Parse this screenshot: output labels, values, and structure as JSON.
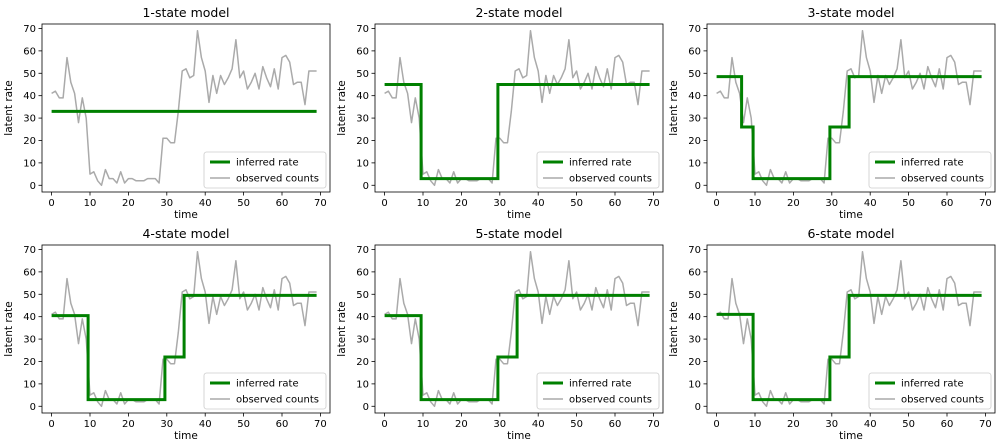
{
  "chart_data": [
    {
      "type": "line",
      "title": "1-state model",
      "xlabel": "time",
      "ylabel": "latent rate",
      "xlim": [
        -2.5,
        72.5
      ],
      "ylim": [
        -3,
        72
      ],
      "xticks": [
        0,
        10,
        20,
        30,
        40,
        50,
        60,
        70
      ],
      "yticks": [
        0,
        10,
        20,
        30,
        40,
        50,
        60,
        70
      ],
      "legend_placement": "lower right",
      "series": [
        {
          "name": "inferred rate",
          "color": "#008000",
          "segments": [
            {
              "x0": 0,
              "x1": 69,
              "value": 33
            }
          ]
        },
        {
          "name": "observed counts",
          "color": "#aaaaaa",
          "ref": "observed_counts"
        }
      ]
    },
    {
      "type": "line",
      "title": "2-state model",
      "xlabel": "time",
      "ylabel": "latent rate",
      "xlim": [
        -2.5,
        72.5
      ],
      "ylim": [
        -3,
        72
      ],
      "xticks": [
        0,
        10,
        20,
        30,
        40,
        50,
        60,
        70
      ],
      "yticks": [
        0,
        10,
        20,
        30,
        40,
        50,
        60,
        70
      ],
      "legend_placement": "lower right",
      "series": [
        {
          "name": "inferred rate",
          "color": "#008000",
          "segments": [
            {
              "x0": 0,
              "x1": 9.5,
              "value": 45
            },
            {
              "x0": 9.5,
              "x1": 29.5,
              "value": 3
            },
            {
              "x0": 29.5,
              "x1": 69,
              "value": 45
            }
          ]
        },
        {
          "name": "observed counts",
          "color": "#aaaaaa",
          "ref": "observed_counts"
        }
      ]
    },
    {
      "type": "line",
      "title": "3-state model",
      "xlabel": "time",
      "ylabel": "latent rate",
      "xlim": [
        -2.5,
        72.5
      ],
      "ylim": [
        -3,
        72
      ],
      "xticks": [
        0,
        10,
        20,
        30,
        40,
        50,
        60,
        70
      ],
      "yticks": [
        0,
        10,
        20,
        30,
        40,
        50,
        60,
        70
      ],
      "legend_placement": "lower right",
      "series": [
        {
          "name": "inferred rate",
          "color": "#008000",
          "segments": [
            {
              "x0": 0,
              "x1": 6.5,
              "value": 48.5
            },
            {
              "x0": 6.5,
              "x1": 9.5,
              "value": 26
            },
            {
              "x0": 9.5,
              "x1": 29.5,
              "value": 3
            },
            {
              "x0": 29.5,
              "x1": 34.5,
              "value": 26
            },
            {
              "x0": 34.5,
              "x1": 69,
              "value": 48.5
            }
          ]
        },
        {
          "name": "observed counts",
          "color": "#aaaaaa",
          "ref": "observed_counts"
        }
      ]
    },
    {
      "type": "line",
      "title": "4-state model",
      "xlabel": "time",
      "ylabel": "latent rate",
      "xlim": [
        -2.5,
        72.5
      ],
      "ylim": [
        -3,
        72
      ],
      "xticks": [
        0,
        10,
        20,
        30,
        40,
        50,
        60,
        70
      ],
      "yticks": [
        0,
        10,
        20,
        30,
        40,
        50,
        60,
        70
      ],
      "legend_placement": "lower right",
      "series": [
        {
          "name": "inferred rate",
          "color": "#008000",
          "segments": [
            {
              "x0": 0,
              "x1": 9.5,
              "value": 40.5
            },
            {
              "x0": 9.5,
              "x1": 29.5,
              "value": 3
            },
            {
              "x0": 29.5,
              "x1": 34.5,
              "value": 22
            },
            {
              "x0": 34.5,
              "x1": 69,
              "value": 49.5
            }
          ]
        },
        {
          "name": "observed counts",
          "color": "#aaaaaa",
          "ref": "observed_counts"
        }
      ]
    },
    {
      "type": "line",
      "title": "5-state model",
      "xlabel": "time",
      "ylabel": "latent rate",
      "xlim": [
        -2.5,
        72.5
      ],
      "ylim": [
        -3,
        72
      ],
      "xticks": [
        0,
        10,
        20,
        30,
        40,
        50,
        60,
        70
      ],
      "yticks": [
        0,
        10,
        20,
        30,
        40,
        50,
        60,
        70
      ],
      "legend_placement": "lower right",
      "series": [
        {
          "name": "inferred rate",
          "color": "#008000",
          "segments": [
            {
              "x0": 0,
              "x1": 9.5,
              "value": 40.5
            },
            {
              "x0": 9.5,
              "x1": 29.5,
              "value": 3
            },
            {
              "x0": 29.5,
              "x1": 34.5,
              "value": 22
            },
            {
              "x0": 34.5,
              "x1": 69,
              "value": 49.5
            }
          ]
        },
        {
          "name": "observed counts",
          "color": "#aaaaaa",
          "ref": "observed_counts"
        }
      ]
    },
    {
      "type": "line",
      "title": "6-state model",
      "xlabel": "time",
      "ylabel": "latent rate",
      "xlim": [
        -2.5,
        72.5
      ],
      "ylim": [
        -3,
        72
      ],
      "xticks": [
        0,
        10,
        20,
        30,
        40,
        50,
        60,
        70
      ],
      "yticks": [
        0,
        10,
        20,
        30,
        40,
        50,
        60,
        70
      ],
      "legend_placement": "lower right",
      "series": [
        {
          "name": "inferred rate",
          "color": "#008000",
          "segments": [
            {
              "x0": 0,
              "x1": 9.5,
              "value": 41
            },
            {
              "x0": 9.5,
              "x1": 29.5,
              "value": 3
            },
            {
              "x0": 29.5,
              "x1": 34.5,
              "value": 22
            },
            {
              "x0": 34.5,
              "x1": 69,
              "value": 49.5
            }
          ]
        },
        {
          "name": "observed counts",
          "color": "#aaaaaa",
          "ref": "observed_counts"
        }
      ]
    }
  ],
  "observed_counts": {
    "x": [
      0,
      1,
      2,
      3,
      4,
      5,
      6,
      7,
      8,
      9,
      10,
      11,
      12,
      13,
      14,
      15,
      16,
      17,
      18,
      19,
      20,
      21,
      22,
      23,
      24,
      25,
      26,
      27,
      28,
      29,
      30,
      31,
      32,
      33,
      34,
      35,
      36,
      37,
      38,
      39,
      40,
      41,
      42,
      43,
      44,
      45,
      46,
      47,
      48,
      49,
      50,
      51,
      52,
      53,
      54,
      55,
      56,
      57,
      58,
      59,
      60,
      61,
      62,
      63,
      64,
      65,
      66,
      67,
      68,
      69
    ],
    "y": [
      41,
      42,
      39,
      39,
      57,
      46,
      41,
      28,
      39,
      30,
      5,
      6,
      2,
      0,
      7,
      3,
      3,
      1,
      6,
      1,
      3,
      3,
      2,
      2,
      2,
      3,
      3,
      3,
      1,
      21,
      21,
      19,
      19,
      33,
      51,
      52,
      48,
      49,
      69,
      57,
      51,
      37,
      49,
      41,
      49,
      45,
      48,
      52,
      65,
      48,
      51,
      43,
      46,
      50,
      43,
      53,
      48,
      44,
      52,
      43,
      57,
      58,
      55,
      45,
      46,
      46,
      36,
      51,
      51,
      51
    ]
  },
  "legend": {
    "inferred": "inferred rate",
    "observed": "observed counts"
  },
  "colors": {
    "inferred": "#008000",
    "observed": "#aaaaaa",
    "axis": "#000000"
  }
}
